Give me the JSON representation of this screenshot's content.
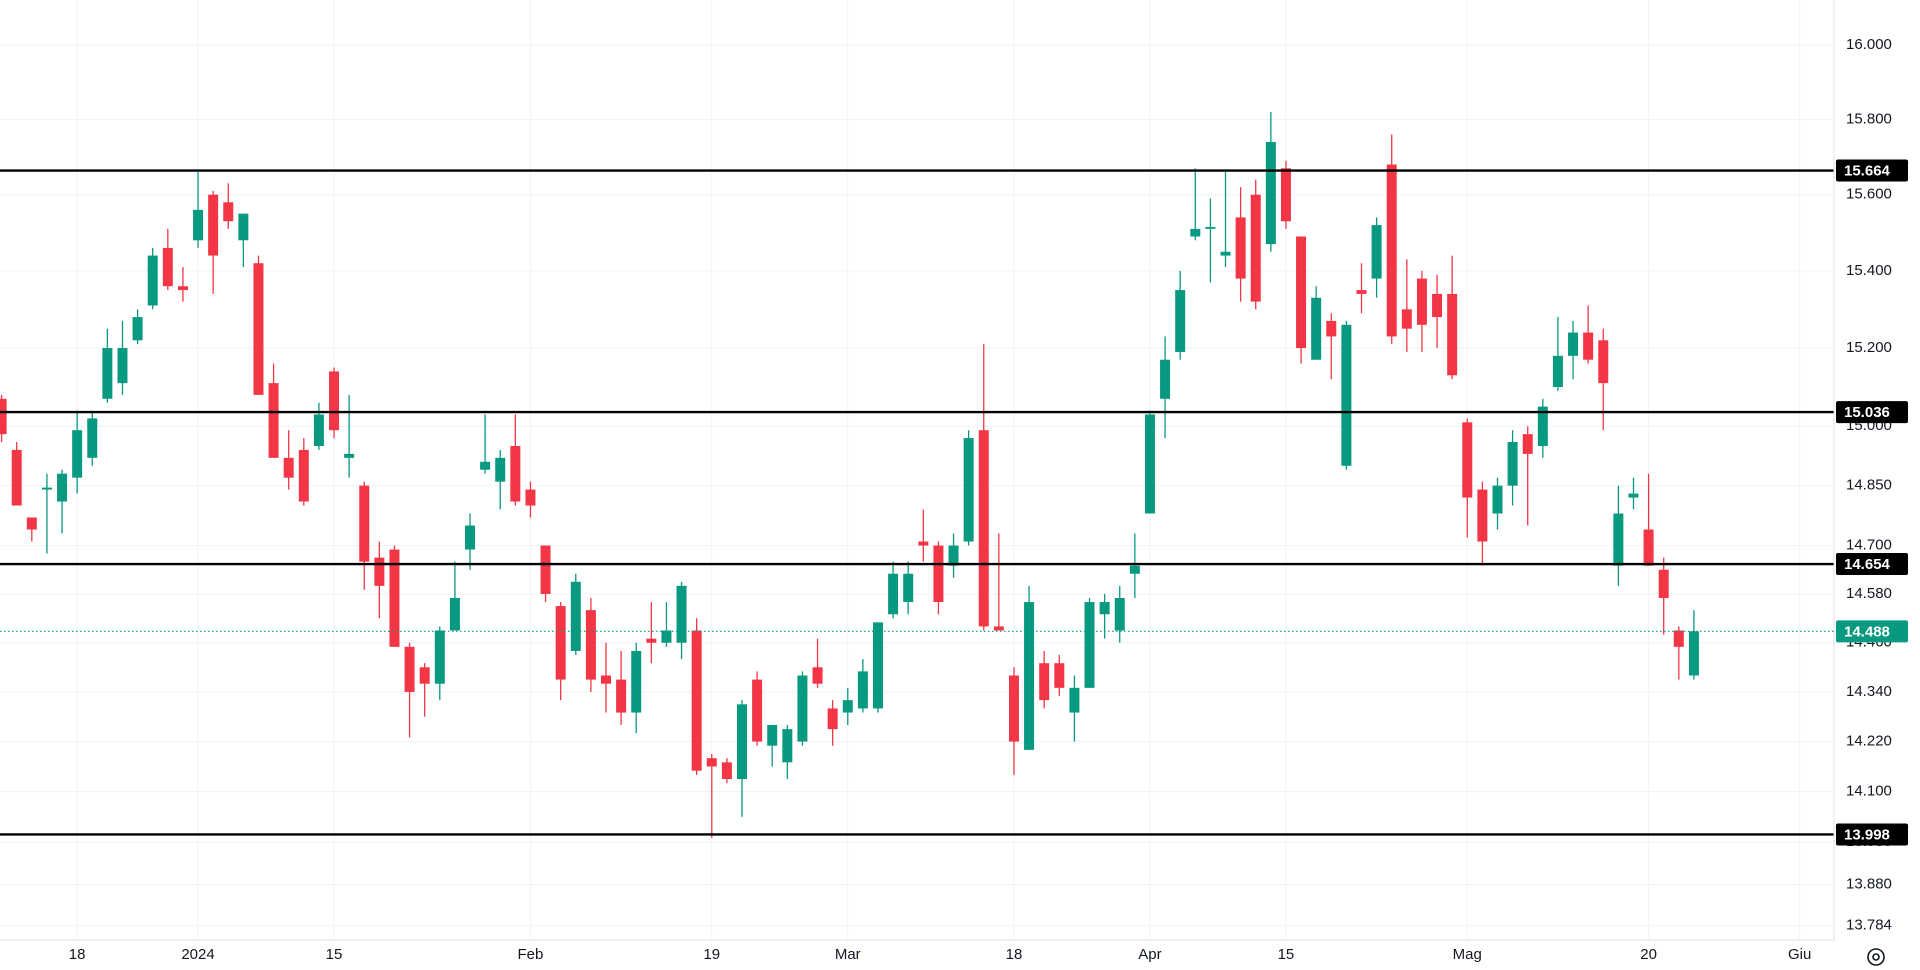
{
  "chart_data": {
    "type": "candlestick",
    "log_scale": true,
    "grid": true,
    "up_color": "#089981",
    "down_color": "#f23645",
    "level_color": "#000000",
    "last_color": "#089981",
    "ylim": [
      13.75,
      16.123
    ],
    "yticks": [
      {
        "value": 16.0,
        "label": "16.000"
      },
      {
        "value": 15.8,
        "label": "15.800"
      },
      {
        "value": 15.6,
        "label": "15.600"
      },
      {
        "value": 15.4,
        "label": "15.400"
      },
      {
        "value": 15.2,
        "label": "15.200"
      },
      {
        "value": 15.0,
        "label": "15.000"
      },
      {
        "value": 14.85,
        "label": "14.850"
      },
      {
        "value": 14.7,
        "label": "14.700"
      },
      {
        "value": 14.58,
        "label": "14.580"
      },
      {
        "value": 14.46,
        "label": "14.460"
      },
      {
        "value": 14.34,
        "label": "14.340"
      },
      {
        "value": 14.22,
        "label": "14.220"
      },
      {
        "value": 14.1,
        "label": "14.100"
      },
      {
        "value": 13.98,
        "label": "13.980"
      },
      {
        "value": 13.88,
        "label": "13.880"
      },
      {
        "value": 13.784,
        "label": "13.784"
      }
    ],
    "levels": [
      15.664,
      15.036,
      14.654,
      13.998
    ],
    "last_price": 14.488,
    "categories": [
      null,
      null,
      null,
      null,
      null,
      "18",
      null,
      null,
      null,
      null,
      null,
      null,
      null,
      "2024",
      null,
      null,
      null,
      null,
      null,
      null,
      null,
      null,
      "15",
      null,
      null,
      null,
      null,
      null,
      null,
      null,
      null,
      null,
      null,
      null,
      null,
      "Feb",
      null,
      null,
      null,
      null,
      null,
      null,
      null,
      null,
      null,
      null,
      null,
      "19",
      null,
      null,
      null,
      null,
      null,
      null,
      null,
      null,
      "Mar",
      null,
      null,
      null,
      null,
      null,
      null,
      null,
      null,
      null,
      null,
      "18",
      null,
      null,
      null,
      null,
      null,
      null,
      null,
      null,
      "Apr",
      null,
      null,
      null,
      null,
      null,
      null,
      null,
      null,
      "15",
      null,
      null,
      null,
      null,
      null,
      null,
      null,
      null,
      null,
      null,
      null,
      "Mag",
      null,
      null,
      null,
      null,
      null,
      null,
      null,
      null,
      null,
      null,
      null,
      "20",
      null,
      null,
      null,
      null,
      null,
      null,
      null,
      null,
      null,
      "Giu"
    ],
    "open": [
      15.07,
      14.94,
      14.77,
      14.84,
      14.81,
      14.87,
      14.92,
      15.07,
      15.11,
      15.22,
      15.31,
      15.46,
      15.36,
      15.48,
      15.6,
      15.58,
      15.48,
      15.42,
      15.11,
      14.92,
      14.94,
      14.95,
      15.14,
      14.92,
      14.85,
      14.67,
      14.69,
      14.45,
      14.4,
      14.36,
      14.49,
      14.69,
      14.89,
      14.86,
      14.95,
      14.84,
      14.7,
      14.55,
      14.44,
      14.54,
      14.38,
      14.37,
      14.29,
      14.47,
      14.46,
      14.46,
      14.49,
      14.18,
      14.17,
      14.13,
      14.37,
      14.21,
      14.17,
      14.22,
      14.4,
      14.3,
      14.29,
      14.3,
      14.3,
      14.53,
      14.56,
      14.71,
      14.7,
      14.65,
      14.71,
      14.99,
      14.5,
      14.38,
      14.2,
      14.41,
      14.41,
      14.29,
      14.35,
      14.53,
      14.49,
      14.63,
      14.78,
      15.07,
      15.19,
      15.49,
      15.51,
      15.44,
      15.54,
      15.6,
      15.47,
      15.67,
      15.49,
      15.17,
      15.27,
      14.9,
      15.35,
      15.38,
      15.68,
      15.3,
      15.38,
      15.34,
      15.34,
      15.01,
      14.84,
      14.78,
      14.85,
      14.98,
      14.95,
      15.1,
      15.18,
      15.24,
      15.22,
      14.65,
      14.82,
      14.74,
      14.64,
      14.49,
      14.38,
      null,
      null,
      null,
      null,
      null,
      null,
      null
    ],
    "high": [
      15.08,
      14.96,
      14.77,
      14.88,
      14.89,
      15.04,
      15.04,
      15.25,
      15.27,
      15.3,
      15.46,
      15.51,
      15.41,
      15.66,
      15.61,
      15.63,
      15.55,
      15.44,
      15.16,
      14.99,
      14.97,
      15.06,
      15.15,
      15.08,
      14.86,
      14.71,
      14.7,
      14.46,
      14.41,
      14.5,
      14.66,
      14.78,
      15.03,
      14.94,
      15.03,
      14.86,
      14.7,
      14.56,
      14.63,
      14.57,
      14.46,
      14.44,
      14.46,
      14.56,
      14.56,
      14.61,
      14.52,
      14.19,
      14.18,
      14.32,
      14.39,
      14.26,
      14.26,
      14.39,
      14.47,
      14.32,
      14.35,
      14.42,
      14.51,
      14.66,
      14.66,
      14.79,
      14.71,
      14.73,
      14.99,
      15.21,
      14.73,
      14.4,
      14.6,
      14.44,
      14.43,
      14.38,
      14.57,
      14.58,
      14.6,
      14.73,
      15.04,
      15.23,
      15.4,
      15.67,
      15.59,
      15.66,
      15.62,
      15.64,
      15.82,
      15.69,
      15.49,
      15.36,
      15.29,
      15.27,
      15.42,
      15.54,
      15.76,
      15.43,
      15.4,
      15.39,
      15.44,
      15.02,
      14.86,
      14.87,
      14.99,
      15.0,
      15.07,
      15.28,
      15.27,
      15.31,
      15.25,
      14.85,
      14.87,
      14.88,
      14.67,
      14.5,
      14.54,
      null,
      null,
      null,
      null,
      null,
      null,
      null
    ],
    "low": [
      14.96,
      14.8,
      14.71,
      14.68,
      14.73,
      14.83,
      14.9,
      15.06,
      15.08,
      15.21,
      15.3,
      15.35,
      15.32,
      15.46,
      15.34,
      15.51,
      15.41,
      15.08,
      14.92,
      14.84,
      14.8,
      14.94,
      14.97,
      14.87,
      14.59,
      14.52,
      14.45,
      14.23,
      14.28,
      14.32,
      14.49,
      14.64,
      14.88,
      14.79,
      14.8,
      14.77,
      14.56,
      14.32,
      14.43,
      14.34,
      14.29,
      14.26,
      14.24,
      14.41,
      14.45,
      14.42,
      14.14,
      13.99,
      14.12,
      14.04,
      14.21,
      14.16,
      14.13,
      14.21,
      14.35,
      14.21,
      14.26,
      14.29,
      14.29,
      14.52,
      14.53,
      14.66,
      14.53,
      14.62,
      14.7,
      14.49,
      14.49,
      14.14,
      14.2,
      14.3,
      14.33,
      14.22,
      14.35,
      14.47,
      14.46,
      14.57,
      14.78,
      14.97,
      15.17,
      15.48,
      15.37,
      15.41,
      15.32,
      15.3,
      15.45,
      15.51,
      15.16,
      15.17,
      15.12,
      14.89,
      15.29,
      15.33,
      15.21,
      15.19,
      15.19,
      15.2,
      15.12,
      14.72,
      14.65,
      14.74,
      14.8,
      14.75,
      14.92,
      15.09,
      15.12,
      15.16,
      14.99,
      14.6,
      14.79,
      14.65,
      14.48,
      14.37,
      14.37,
      null,
      null,
      null,
      null,
      null,
      null,
      null
    ],
    "close": [
      14.98,
      14.8,
      14.74,
      14.845,
      14.88,
      14.99,
      15.02,
      15.2,
      15.2,
      15.28,
      15.44,
      15.36,
      15.35,
      15.56,
      15.44,
      15.53,
      15.55,
      15.08,
      14.92,
      14.87,
      14.81,
      15.03,
      14.99,
      14.93,
      14.66,
      14.6,
      14.45,
      14.34,
      14.36,
      14.49,
      14.57,
      14.75,
      14.91,
      14.92,
      14.81,
      14.8,
      14.58,
      14.37,
      14.61,
      14.37,
      14.36,
      14.29,
      14.44,
      14.46,
      14.49,
      14.6,
      14.15,
      14.16,
      14.13,
      14.31,
      14.22,
      14.26,
      14.25,
      14.38,
      14.36,
      14.25,
      14.32,
      14.39,
      14.51,
      14.63,
      14.63,
      14.7,
      14.56,
      14.7,
      14.97,
      14.5,
      14.49,
      14.22,
      14.56,
      14.32,
      14.35,
      14.35,
      14.56,
      14.56,
      14.57,
      14.65,
      15.03,
      15.17,
      15.35,
      15.51,
      15.515,
      15.45,
      15.38,
      15.32,
      15.74,
      15.53,
      15.2,
      15.33,
      15.23,
      15.26,
      15.34,
      15.52,
      15.23,
      15.25,
      15.26,
      15.28,
      15.13,
      14.82,
      14.71,
      14.85,
      14.96,
      14.93,
      15.05,
      15.18,
      15.24,
      15.17,
      15.11,
      14.78,
      14.83,
      14.65,
      14.57,
      14.45,
      14.488,
      null,
      null,
      null,
      null,
      null,
      null,
      null
    ]
  }
}
